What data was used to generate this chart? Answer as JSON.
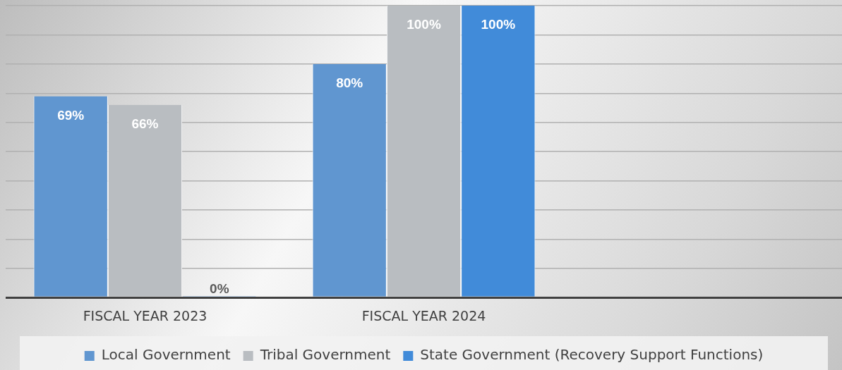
{
  "chart_data": {
    "type": "bar",
    "categories": [
      "FISCAL YEAR 2023",
      "FISCAL YEAR 2024",
      null
    ],
    "series": [
      {
        "name": "Local Government",
        "color": "#6096d0",
        "values": [
          69,
          80,
          null
        ],
        "value_labels": [
          "69%",
          "80%",
          null
        ]
      },
      {
        "name": "Tribal Government",
        "color": "#b9bdc1",
        "values": [
          66,
          100,
          null
        ],
        "value_labels": [
          "66%",
          "100%",
          null
        ]
      },
      {
        "name": "State Government (Recovery Support Functions)",
        "color": "#418bd9",
        "values": [
          0,
          100,
          null
        ],
        "value_labels": [
          "0%",
          "100%",
          null
        ]
      }
    ],
    "ylim": [
      0,
      100
    ],
    "tick_labels": "x",
    "grid": "y",
    "legend": "bottom"
  }
}
